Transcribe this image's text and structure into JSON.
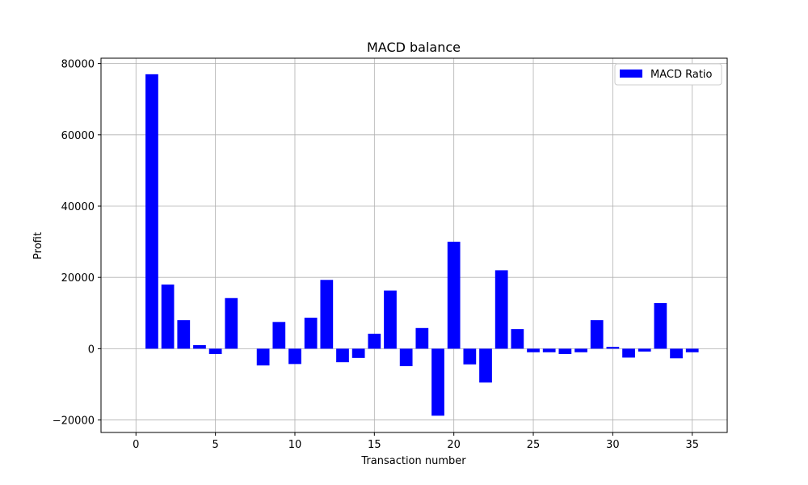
{
  "chart_data": {
    "type": "bar",
    "title": "MACD balance",
    "xlabel": "Transaction number",
    "ylabel": "Profit",
    "xlim": [
      -2.2,
      37.2
    ],
    "ylim": [
      -23500,
      81500
    ],
    "x": [
      1,
      2,
      3,
      4,
      5,
      6,
      7,
      8,
      9,
      10,
      11,
      12,
      13,
      14,
      15,
      16,
      17,
      18,
      19,
      20,
      21,
      22,
      23,
      24,
      25,
      26,
      27,
      28,
      29,
      30,
      31,
      32,
      33,
      34,
      35
    ],
    "xticks": [
      0,
      5,
      10,
      15,
      20,
      25,
      30,
      35
    ],
    "yticks": [
      -20000,
      0,
      20000,
      40000,
      60000,
      80000
    ],
    "ytick_labels": [
      "−20000",
      "0",
      "20000",
      "40000",
      "60000",
      "80000"
    ],
    "grid": true,
    "legend_position": "top-right",
    "series": [
      {
        "name": "MACD Ratio",
        "color": "#0000ff",
        "values": [
          77000,
          18000,
          8000,
          1000,
          -1500,
          14200,
          0,
          -4700,
          7500,
          -4300,
          8700,
          19300,
          -3800,
          -2600,
          4200,
          16300,
          -4900,
          5800,
          -18800,
          30000,
          -4400,
          -9500,
          22000,
          5500,
          -1000,
          -1000,
          -1500,
          -1000,
          8000,
          500,
          -2500,
          -800,
          12800,
          -2700,
          -1000
        ]
      }
    ]
  }
}
